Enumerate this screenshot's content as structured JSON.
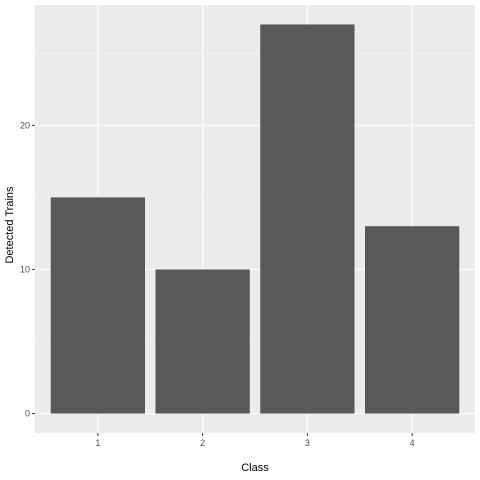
{
  "chart_data": {
    "type": "bar",
    "categories": [
      "1",
      "2",
      "3",
      "4"
    ],
    "values": [
      15,
      10,
      27,
      13
    ],
    "title": "",
    "xlabel": "Class",
    "ylabel": "Detected Trains",
    "ylim": [
      -1.35,
      28.35
    ],
    "y_ticks": [
      0,
      10,
      20
    ],
    "y_tick_labels": [
      "0",
      "10",
      "20"
    ],
    "grid": true,
    "legend": "none",
    "colors": {
      "bar": "#595959",
      "panel": "#ebebeb",
      "grid_major": "#ffffff",
      "grid_minor": "#f5f5f5"
    }
  }
}
